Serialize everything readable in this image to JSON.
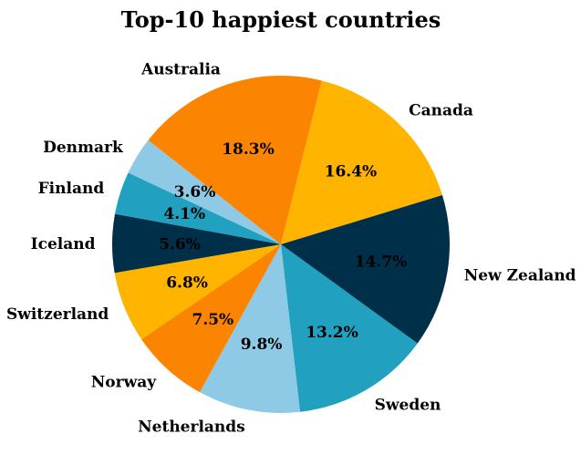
{
  "chart_data": {
    "type": "pie",
    "title": "Top-10 happiest countries",
    "categories": [
      "Canada",
      "New Zealand",
      "Sweden",
      "Netherlands",
      "Norway",
      "Switzerland",
      "Iceland",
      "Finland",
      "Denmark",
      "Australia"
    ],
    "values": [
      16.4,
      14.7,
      13.2,
      9.8,
      7.5,
      6.8,
      5.6,
      4.1,
      3.6,
      18.3
    ],
    "value_labels": [
      "16.4%",
      "14.7%",
      "13.2%",
      "9.8%",
      "7.5%",
      "6.8%",
      "5.6%",
      "4.1%",
      "3.6%",
      "18.3%"
    ],
    "colors": [
      "#FFB400",
      "#003049",
      "#21A0C0",
      "#8EC9E6",
      "#FB8500",
      "#FFB400",
      "#003049",
      "#21A0C0",
      "#8EC9E6",
      "#FB8500"
    ],
    "legend": "none"
  }
}
